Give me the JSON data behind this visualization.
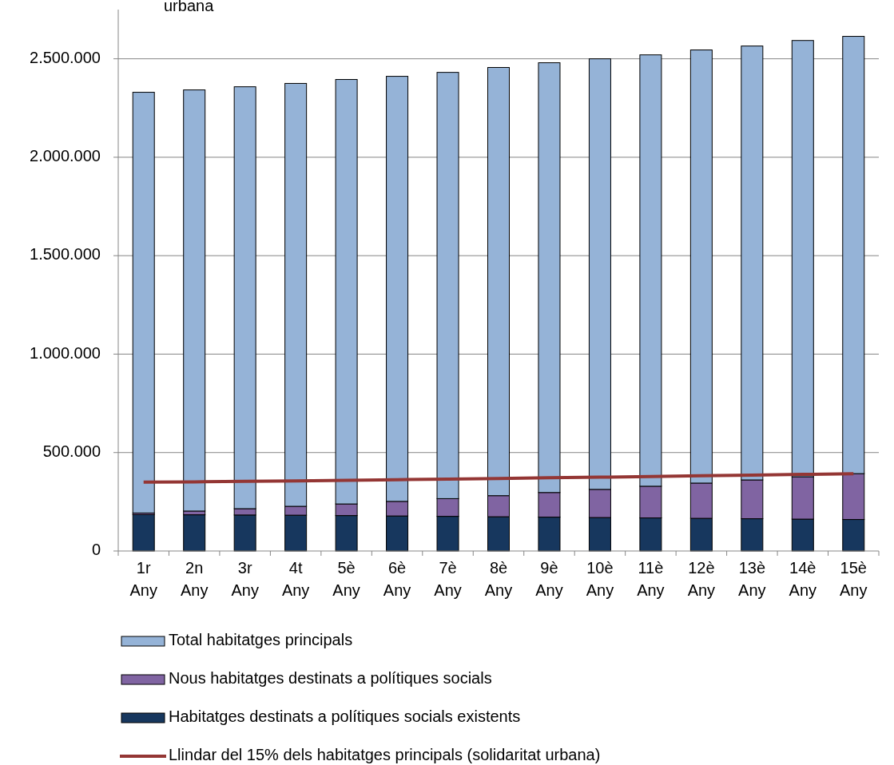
{
  "chart_data": {
    "type": "bar",
    "title": "urbana",
    "stacked": true,
    "categories": [
      "1r Any",
      "2n Any",
      "3r Any",
      "4t Any",
      "5è Any",
      "6è Any",
      "7è Any",
      "8è Any",
      "9è Any",
      "10è Any",
      "11è Any",
      "12è Any",
      "13è Any",
      "14è Any",
      "15è Any"
    ],
    "series": [
      {
        "name": "Habitatges destinats a polítiques socials existents",
        "color": "#17375e",
        "values": [
          185000,
          184000,
          183000,
          182000,
          180000,
          178000,
          176000,
          174000,
          172000,
          170000,
          168000,
          166000,
          164000,
          162000,
          160000
        ]
      },
      {
        "name": "Nous habitatges destinats a polítiques socials",
        "color": "#8064a2",
        "values": [
          8000,
          19000,
          32000,
          45000,
          59000,
          74000,
          90000,
          107000,
          125000,
          143000,
          161000,
          179000,
          197000,
          215000,
          233000
        ]
      },
      {
        "name": "Total habitatges principals",
        "color": "#95b3d7",
        "values": [
          2137000,
          2139000,
          2143000,
          2148000,
          2156000,
          2159000,
          2165000,
          2175000,
          2183000,
          2187000,
          2191000,
          2200000,
          2204000,
          2216000,
          2221000
        ]
      },
      {
        "name": "Llindar del 15% dels habitatges principals (solidaritat urbana)",
        "type": "line",
        "color": "#943634",
        "values": [
          350000,
          351000,
          354000,
          356000,
          359000,
          362000,
          365000,
          368000,
          372000,
          375000,
          378000,
          382000,
          385000,
          389000,
          392000
        ]
      }
    ],
    "ylim": [
      0,
      2750000
    ],
    "yticks": [
      {
        "value": 0,
        "label": "0"
      },
      {
        "value": 500000,
        "label": "500.000"
      },
      {
        "value": 1000000,
        "label": "1.000.000"
      },
      {
        "value": 1500000,
        "label": "1.500.000"
      },
      {
        "value": 2000000,
        "label": "2.000.000"
      },
      {
        "value": 2500000,
        "label": "2.500.000"
      }
    ],
    "grid": "y",
    "legend": "bottom"
  }
}
